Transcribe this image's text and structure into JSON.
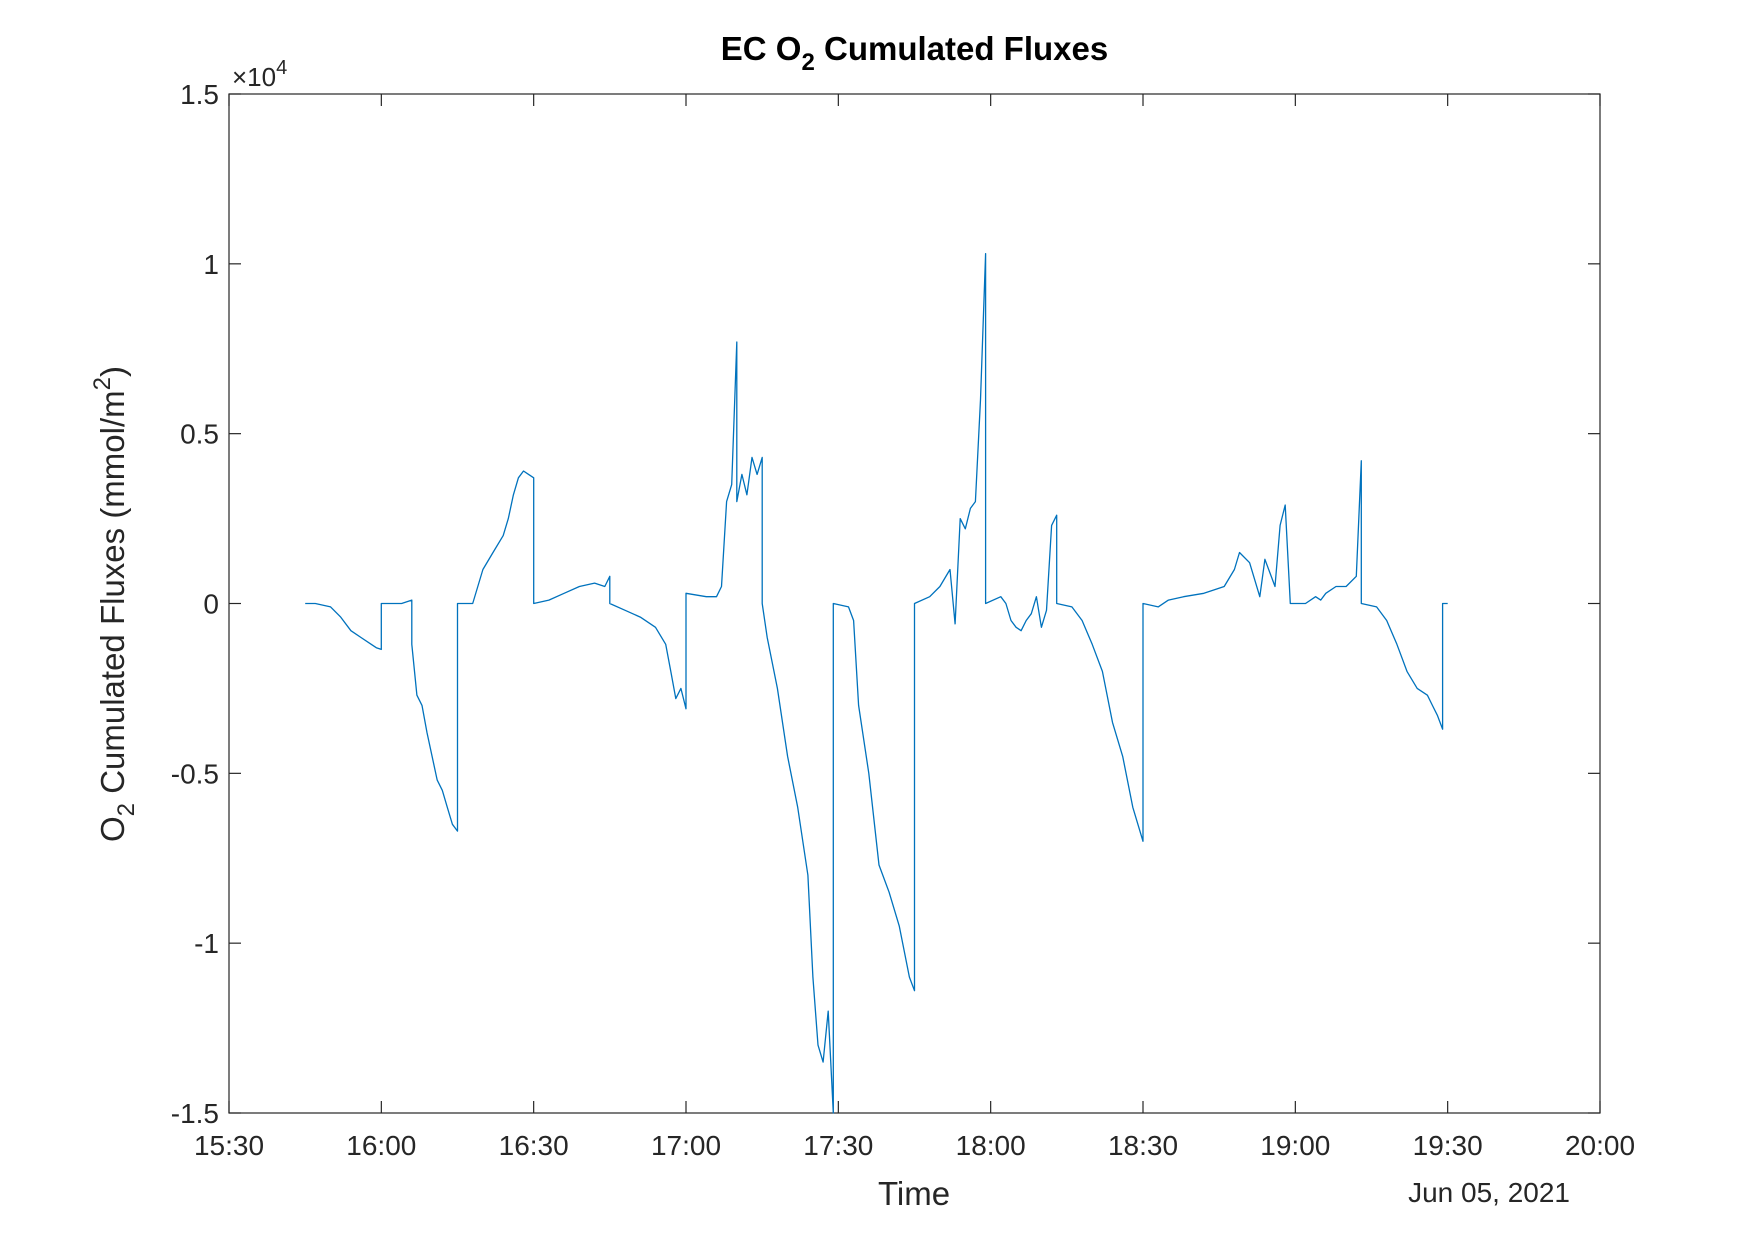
{
  "chart_data": {
    "type": "line",
    "title": {
      "main": "EC O",
      "sub": "2",
      "rest": " Cumulated Fluxes"
    },
    "xlabel": "Time",
    "ylabel": {
      "main": "O",
      "sub": "2",
      "rest": " Cumulated Fluxes (mmol/m",
      "sup": "2",
      "close": ")"
    },
    "date_label": "Jun 05, 2021",
    "y_multiplier": {
      "prefix": "×10",
      "exponent": "4"
    },
    "xlim": [
      "15:30",
      "20:00"
    ],
    "ylim": [
      -1.5,
      1.5
    ],
    "x_ticks": [
      "15:30",
      "16:00",
      "16:30",
      "17:00",
      "17:30",
      "18:00",
      "18:30",
      "19:00",
      "19:30",
      "20:00"
    ],
    "y_ticks": [
      {
        "value": 1.5,
        "label": "1.5"
      },
      {
        "value": 1,
        "label": "1"
      },
      {
        "value": 0.5,
        "label": "0.5"
      },
      {
        "value": 0,
        "label": "0"
      },
      {
        "value": -0.5,
        "label": "-0.5"
      },
      {
        "value": -1,
        "label": "-1"
      },
      {
        "value": -1.5,
        "label": "-1.5"
      }
    ],
    "grid": false,
    "series": [
      {
        "color": "#0072BD",
        "points": [
          [
            "15:45",
            0
          ],
          [
            "15:47",
            0
          ],
          [
            "15:50",
            -0.01
          ],
          [
            "15:52",
            -0.04
          ],
          [
            "15:54",
            -0.08
          ],
          [
            "15:56",
            -0.1
          ],
          [
            "15:58",
            -0.12
          ],
          [
            "15:59",
            -0.13
          ],
          [
            "16:00",
            -0.135
          ],
          [
            "16:00",
            0
          ],
          [
            "16:04",
            0
          ],
          [
            "16:06",
            0.01
          ],
          [
            "16:06",
            -0.12
          ],
          [
            "16:07",
            -0.27
          ],
          [
            "16:08",
            -0.3
          ],
          [
            "16:09",
            -0.38
          ],
          [
            "16:10",
            -0.45
          ],
          [
            "16:11",
            -0.52
          ],
          [
            "16:12",
            -0.55
          ],
          [
            "16:13",
            -0.6
          ],
          [
            "16:14",
            -0.65
          ],
          [
            "16:15",
            -0.67
          ],
          [
            "16:15",
            0
          ],
          [
            "16:18",
            0
          ],
          [
            "16:19",
            0.05
          ],
          [
            "16:20",
            0.1
          ],
          [
            "16:22",
            0.15
          ],
          [
            "16:24",
            0.2
          ],
          [
            "16:25",
            0.25
          ],
          [
            "16:26",
            0.32
          ],
          [
            "16:27",
            0.37
          ],
          [
            "16:28",
            0.39
          ],
          [
            "16:29",
            0.38
          ],
          [
            "16:30",
            0.37
          ],
          [
            "16:30",
            0
          ],
          [
            "16:33",
            0.01
          ],
          [
            "16:36",
            0.03
          ],
          [
            "16:39",
            0.05
          ],
          [
            "16:42",
            0.06
          ],
          [
            "16:44",
            0.05
          ],
          [
            "16:45",
            0.08
          ],
          [
            "16:45",
            0
          ],
          [
            "16:48",
            -0.02
          ],
          [
            "16:51",
            -0.04
          ],
          [
            "16:54",
            -0.07
          ],
          [
            "16:56",
            -0.12
          ],
          [
            "16:57",
            -0.2
          ],
          [
            "16:58",
            -0.28
          ],
          [
            "16:59",
            -0.25
          ],
          [
            "17:00",
            -0.31
          ],
          [
            "17:00",
            0.03
          ],
          [
            "17:04",
            0.02
          ],
          [
            "17:06",
            0.02
          ],
          [
            "17:07",
            0.05
          ],
          [
            "17:08",
            0.3
          ],
          [
            "17:09",
            0.35
          ],
          [
            "17:10",
            0.77
          ],
          [
            "17:10",
            0.3
          ],
          [
            "17:11",
            0.38
          ],
          [
            "17:12",
            0.32
          ],
          [
            "17:13",
            0.43
          ],
          [
            "17:14",
            0.38
          ],
          [
            "17:15",
            0.43
          ],
          [
            "17:15",
            0
          ],
          [
            "17:16",
            -0.1
          ],
          [
            "17:18",
            -0.25
          ],
          [
            "17:20",
            -0.45
          ],
          [
            "17:22",
            -0.6
          ],
          [
            "17:24",
            -0.8
          ],
          [
            "17:25",
            -1.1
          ],
          [
            "17:26",
            -1.3
          ],
          [
            "17:27",
            -1.35
          ],
          [
            "17:28",
            -1.2
          ],
          [
            "17:29",
            -1.5
          ],
          [
            "17:29",
            0
          ],
          [
            "17:32",
            -0.01
          ],
          [
            "17:33",
            -0.05
          ],
          [
            "17:34",
            -0.3
          ],
          [
            "17:36",
            -0.5
          ],
          [
            "17:38",
            -0.77
          ],
          [
            "17:40",
            -0.85
          ],
          [
            "17:42",
            -0.95
          ],
          [
            "17:44",
            -1.1
          ],
          [
            "17:45",
            -1.14
          ],
          [
            "17:45",
            0
          ],
          [
            "17:48",
            0.02
          ],
          [
            "17:50",
            0.05
          ],
          [
            "17:52",
            0.1
          ],
          [
            "17:53",
            -0.06
          ],
          [
            "17:54",
            0.25
          ],
          [
            "17:55",
            0.22
          ],
          [
            "17:56",
            0.28
          ],
          [
            "17:57",
            0.3
          ],
          [
            "17:58",
            0.6
          ],
          [
            "17:59",
            1.03
          ],
          [
            "17:59",
            0
          ],
          [
            "18:02",
            0.02
          ],
          [
            "18:03",
            0
          ],
          [
            "18:04",
            -0.05
          ],
          [
            "18:05",
            -0.07
          ],
          [
            "18:06",
            -0.08
          ],
          [
            "18:07",
            -0.05
          ],
          [
            "18:08",
            -0.03
          ],
          [
            "18:09",
            0.02
          ],
          [
            "18:10",
            -0.07
          ],
          [
            "18:11",
            -0.02
          ],
          [
            "18:12",
            0.23
          ],
          [
            "18:13",
            0.26
          ],
          [
            "18:13",
            0
          ],
          [
            "18:16",
            -0.01
          ],
          [
            "18:18",
            -0.05
          ],
          [
            "18:20",
            -0.12
          ],
          [
            "18:22",
            -0.2
          ],
          [
            "18:24",
            -0.35
          ],
          [
            "18:25",
            -0.4
          ],
          [
            "18:26",
            -0.45
          ],
          [
            "18:28",
            -0.6
          ],
          [
            "18:30",
            -0.7
          ],
          [
            "18:30",
            0
          ],
          [
            "18:33",
            -0.01
          ],
          [
            "18:35",
            0.01
          ],
          [
            "18:38",
            0.02
          ],
          [
            "18:42",
            0.03
          ],
          [
            "18:44",
            0.04
          ],
          [
            "18:46",
            0.05
          ],
          [
            "18:48",
            0.1
          ],
          [
            "18:49",
            0.15
          ],
          [
            "18:51",
            0.12
          ],
          [
            "18:53",
            0.02
          ],
          [
            "18:54",
            0.13
          ],
          [
            "18:56",
            0.05
          ],
          [
            "18:57",
            0.23
          ],
          [
            "18:58",
            0.29
          ],
          [
            "18:59",
            0
          ],
          [
            "19:02",
            0
          ],
          [
            "19:04",
            0.02
          ],
          [
            "19:05",
            0.01
          ],
          [
            "19:06",
            0.03
          ],
          [
            "19:08",
            0.05
          ],
          [
            "19:10",
            0.05
          ],
          [
            "19:12",
            0.08
          ],
          [
            "19:13",
            0.42
          ],
          [
            "19:13",
            0
          ],
          [
            "19:16",
            -0.01
          ],
          [
            "19:18",
            -0.05
          ],
          [
            "19:20",
            -0.12
          ],
          [
            "19:22",
            -0.2
          ],
          [
            "19:24",
            -0.25
          ],
          [
            "19:26",
            -0.27
          ],
          [
            "19:27",
            -0.3
          ],
          [
            "19:28",
            -0.33
          ],
          [
            "19:29",
            -0.37
          ],
          [
            "19:29",
            0
          ],
          [
            "19:30",
            0
          ]
        ]
      }
    ]
  }
}
